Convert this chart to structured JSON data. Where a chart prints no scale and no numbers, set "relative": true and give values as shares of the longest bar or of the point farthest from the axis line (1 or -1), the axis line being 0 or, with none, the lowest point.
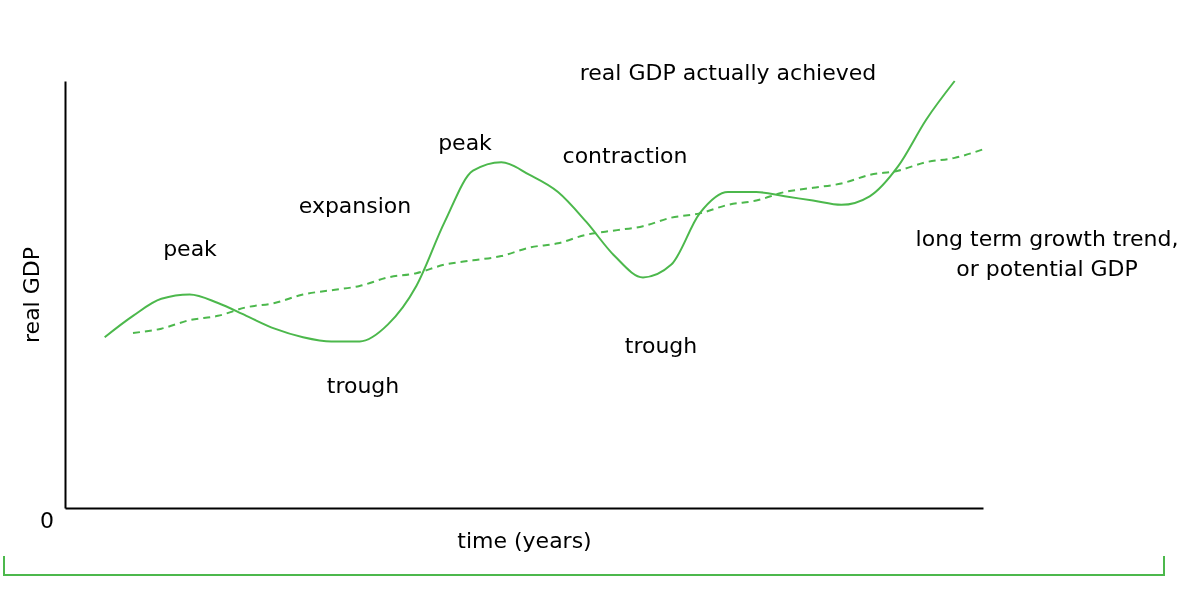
{
  "chart_data": {
    "type": "line",
    "relative": true,
    "xlabel": "time (years)",
    "ylabel": "real GDP",
    "categories": [
      null,
      null,
      null,
      null,
      null,
      null,
      null,
      null,
      null,
      null,
      null,
      null,
      null,
      null,
      null,
      null,
      null,
      null,
      null,
      null,
      null,
      null,
      null,
      null,
      null,
      null,
      null,
      null,
      null,
      null,
      null,
      null
    ],
    "series": [
      {
        "name": "real GDP actually achieved",
        "color": "#4cb84c",
        "line_style": "solid",
        "values": [
          0.4,
          0.45,
          0.49,
          0.5,
          0.48,
          0.45,
          0.42,
          0.4,
          0.39,
          0.39,
          0.43,
          0.52,
          0.67,
          0.79,
          0.81,
          0.78,
          0.74,
          0.67,
          0.59,
          0.54,
          0.57,
          0.69,
          0.74,
          0.74,
          0.73,
          0.72,
          0.71,
          0.73,
          0.8,
          0.91,
          1,
          null
        ]
      },
      {
        "name": "long term growth trend,\nor potential GDP",
        "color": "#4cb84c",
        "line_style": "dashed",
        "values": [
          null,
          0.41,
          0.42,
          0.44,
          0.45,
          0.47,
          0.48,
          0.5,
          0.51,
          0.52,
          0.54,
          0.55,
          0.57,
          0.58,
          0.59,
          0.61,
          0.62,
          0.64,
          0.65,
          0.66,
          0.68,
          0.69,
          0.71,
          0.72,
          0.74,
          0.75,
          0.76,
          0.78,
          0.79,
          0.81,
          0.82,
          0.84
        ]
      }
    ],
    "annotations": [
      "peak",
      "expansion",
      "peak",
      "contraction",
      "trough",
      "trough",
      "0"
    ],
    "grid": false,
    "legend": false
  }
}
